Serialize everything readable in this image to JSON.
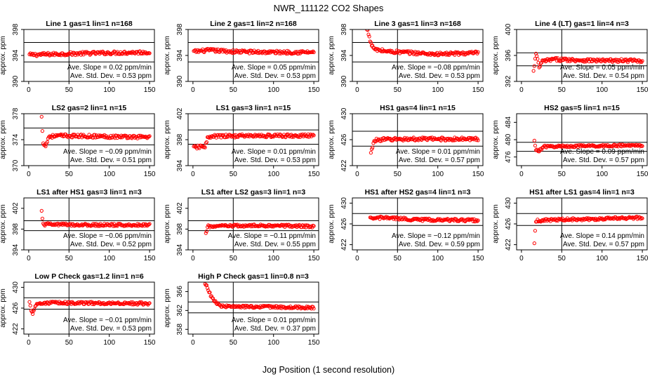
{
  "figure": {
    "title": "NWR_111122  CO2 Shapes",
    "xlabel": "Jog Position (1 second resolution)",
    "ylabel": "approx. ppm",
    "marker_color": "#ff0000"
  },
  "chart_data": [
    {
      "type": "scatter",
      "title": "Line 1 gas=1 lin=1 n=168",
      "ylabel": "approx. ppm",
      "xlim": [
        0,
        150
      ],
      "ylim": [
        390,
        398
      ],
      "xticks": [
        "0",
        "50",
        "100",
        "150"
      ],
      "yticks": [
        "390",
        "394",
        "398"
      ],
      "ytick_values": [
        390,
        394,
        398
      ],
      "hlines": [
        396,
        393
      ],
      "vline": 50,
      "slope_text": "Ave. Slope = 0.02  ppm/min",
      "sd_text": "Ave. Std. Dev. = 0.53  ppm",
      "series": [
        {
          "x_start": 1,
          "x_end": 150,
          "points": [
            [
              1,
              394.1
            ],
            [
              30,
              394.2
            ],
            [
              60,
              394.3
            ],
            [
              100,
              394.4
            ],
            [
              150,
              394.5
            ]
          ]
        }
      ]
    },
    {
      "type": "scatter",
      "title": "Line 2 gas=1 lin=2 n=168",
      "ylabel": "approx. ppm",
      "xlim": [
        0,
        150
      ],
      "ylim": [
        390,
        398
      ],
      "xticks": [
        "0",
        "50",
        "100",
        "150"
      ],
      "yticks": [
        "390",
        "394",
        "398"
      ],
      "ytick_values": [
        390,
        394,
        398
      ],
      "hlines": [
        396,
        393
      ],
      "vline": 50,
      "slope_text": "Ave. Slope = 0.05  ppm/min",
      "sd_text": "Ave. Std. Dev. = 0.53  ppm",
      "series": [
        {
          "x_start": 1,
          "x_end": 150,
          "points": [
            [
              1,
              394.6
            ],
            [
              20,
              394.8
            ],
            [
              50,
              394.6
            ],
            [
              100,
              394.5
            ],
            [
              150,
              394.5
            ]
          ]
        }
      ]
    },
    {
      "type": "scatter",
      "title": "Line 3 gas=1 lin=3 n=168",
      "ylabel": "approx. ppm",
      "xlim": [
        0,
        150
      ],
      "ylim": [
        390,
        398
      ],
      "xticks": [
        "0",
        "50",
        "100",
        "150"
      ],
      "yticks": [
        "390",
        "394",
        "398"
      ],
      "ytick_values": [
        390,
        394,
        398
      ],
      "hlines": [
        396,
        393
      ],
      "vline": 50,
      "slope_text": "Ave. Slope = −0.08  ppm/min",
      "sd_text": "Ave. Std. Dev. = 0.53  ppm",
      "series": [
        {
          "x_start": 1,
          "x_end": 150,
          "points": [
            [
              1,
              399.5
            ],
            [
              5,
              399.3
            ],
            [
              10,
              398.8
            ],
            [
              14,
              397.3
            ],
            [
              18,
              395.5
            ],
            [
              22,
              394.9
            ],
            [
              40,
              394.6
            ],
            [
              100,
              394.2
            ],
            [
              150,
              394.4
            ]
          ]
        }
      ]
    },
    {
      "type": "scatter",
      "title": "Line 4 (LT) gas=1 lin=4 n=3",
      "ylabel": "approx. ppm",
      "xlim": [
        0,
        150
      ],
      "ylim": [
        392,
        400
      ],
      "xticks": [
        "0",
        "50",
        "100",
        "150"
      ],
      "yticks": [
        "392",
        "396",
        "400"
      ],
      "ytick_values": [
        392,
        396,
        400
      ],
      "hlines": [
        396.4,
        394.4
      ],
      "vline": 50,
      "slope_text": "Ave. Slope = 0.05  ppm/min",
      "sd_text": "Ave. Std. Dev. = 0.54  ppm",
      "series": [
        {
          "x_start": 15,
          "x_end": 150,
          "points": [
            [
              15,
              393.5
            ],
            [
              18,
              396.3
            ],
            [
              22,
              394.2
            ],
            [
              26,
              395.1
            ],
            [
              40,
              395.4
            ],
            [
              100,
              395.2
            ],
            [
              150,
              395.2
            ]
          ]
        }
      ]
    },
    {
      "type": "scatter",
      "title": "LS2 gas=2 lin=1 n=15",
      "ylabel": "approx. ppm",
      "xlim": [
        0,
        150
      ],
      "ylim": [
        370,
        378
      ],
      "xticks": [
        "0",
        "50",
        "100",
        "150"
      ],
      "yticks": [
        "370",
        "374",
        "378"
      ],
      "ytick_values": [
        370,
        374,
        378
      ],
      "hlines": [
        375.8,
        373.2
      ],
      "vline": 50,
      "slope_text": "Ave. Slope = −0.09  ppm/min",
      "sd_text": "Ave. Std. Dev. = 0.51  ppm",
      "series": [
        {
          "x_start": 16,
          "x_end": 150,
          "points": [
            [
              16,
              377.4
            ],
            [
              18,
              373.6
            ],
            [
              21,
              373.0
            ],
            [
              25,
              374.5
            ],
            [
              40,
              374.6
            ],
            [
              100,
              374.5
            ],
            [
              150,
              374.4
            ]
          ]
        }
      ]
    },
    {
      "type": "scatter",
      "title": "LS1 gas=3 lin=1 n=15",
      "ylabel": "approx. ppm",
      "xlim": [
        0,
        150
      ],
      "ylim": [
        394,
        402
      ],
      "xticks": [
        "0",
        "50",
        "100",
        "150"
      ],
      "yticks": [
        "394",
        "398",
        "402"
      ],
      "ytick_values": [
        394,
        398,
        402
      ],
      "hlines": [
        399.5,
        397.3
      ],
      "vline": 50,
      "slope_text": "Ave. Slope = 0.01  ppm/min",
      "sd_text": "Ave. Std. Dev. = 0.53  ppm",
      "series": [
        {
          "x_start": 1,
          "x_end": 150,
          "points": [
            [
              1,
              396.8
            ],
            [
              10,
              396.9
            ],
            [
              15,
              397.0
            ],
            [
              18,
              398.2
            ],
            [
              25,
              398.5
            ],
            [
              60,
              398.6
            ],
            [
              150,
              398.6
            ]
          ]
        }
      ]
    },
    {
      "type": "scatter",
      "title": "HS1 gas=4 lin=1 n=15",
      "ylabel": "approx. ppm",
      "xlim": [
        0,
        150
      ],
      "ylim": [
        422,
        430
      ],
      "xticks": [
        "0",
        "50",
        "100",
        "150"
      ],
      "yticks": [
        "422",
        "426",
        "430"
      ],
      "ytick_values": [
        422,
        426,
        430
      ],
      "hlines": [
        427.3,
        425.0
      ],
      "vline": 50,
      "slope_text": "Ave. Slope = 0.01  ppm/min",
      "sd_text": "Ave. Std. Dev. = 0.57  ppm",
      "series": [
        {
          "x_start": 17,
          "x_end": 150,
          "points": [
            [
              17,
              423.8
            ],
            [
              20,
              425.6
            ],
            [
              25,
              426.0
            ],
            [
              60,
              426.1
            ],
            [
              150,
              426.1
            ]
          ]
        }
      ]
    },
    {
      "type": "scatter",
      "title": "HS2 gas=5 lin=1 n=15",
      "ylabel": "approx. ppm",
      "xlim": [
        0,
        150
      ],
      "ylim": [
        474,
        486
      ],
      "xticks": [
        "0",
        "50",
        "100",
        "150"
      ],
      "yticks": [
        "476",
        "480",
        "484"
      ],
      "ytick_values": [
        476,
        480,
        484
      ],
      "hlines": [
        479.4,
        477.3
      ],
      "vline": 50,
      "slope_text": "Ave. Slope = 0.09  ppm/min",
      "sd_text": "Ave. Std. Dev. = 0.57  ppm",
      "series": [
        {
          "x_start": 16,
          "x_end": 150,
          "points": [
            [
              16,
              479.6
            ],
            [
              18,
              477.6
            ],
            [
              22,
              477.5
            ],
            [
              28,
              478.4
            ],
            [
              60,
              478.5
            ],
            [
              150,
              478.7
            ]
          ]
        }
      ]
    },
    {
      "type": "scatter",
      "title": "LS1 after HS1 gas=3 lin=1 n=3",
      "ylabel": "approx. ppm",
      "xlim": [
        0,
        150
      ],
      "ylim": [
        394,
        404
      ],
      "xticks": [
        "0",
        "50",
        "100",
        "150"
      ],
      "yticks": [
        "394",
        "398",
        "402"
      ],
      "ytick_values": [
        394,
        398,
        402
      ],
      "hlines": [
        399.6,
        397.7
      ],
      "vline": 50,
      "slope_text": "Ave. Slope = −0.06  ppm/min",
      "sd_text": "Ave. Std. Dev. = 0.52  ppm",
      "series": [
        {
          "x_start": 16,
          "x_end": 150,
          "points": [
            [
              16,
              401.3
            ],
            [
              18,
              398.9
            ],
            [
              25,
              398.9
            ],
            [
              80,
              398.8
            ],
            [
              150,
              398.8
            ]
          ]
        }
      ]
    },
    {
      "type": "scatter",
      "title": "LS1 after LS2 gas=3 lin=1 n=3",
      "ylabel": "approx. ppm",
      "xlim": [
        0,
        150
      ],
      "ylim": [
        394,
        404
      ],
      "xticks": [
        "0",
        "50",
        "100",
        "150"
      ],
      "yticks": [
        "394",
        "398",
        "402"
      ],
      "ytick_values": [
        394,
        398,
        402
      ],
      "hlines": [
        399.6,
        397.7
      ],
      "vline": 50,
      "slope_text": "Ave. Slope = −0.11  ppm/min",
      "sd_text": "Ave. Std. Dev. = 0.55  ppm",
      "series": [
        {
          "x_start": 16,
          "x_end": 150,
          "points": [
            [
              16,
              397.0
            ],
            [
              18,
              398.5
            ],
            [
              40,
              398.6
            ],
            [
              100,
              398.7
            ],
            [
              150,
              398.5
            ]
          ]
        }
      ]
    },
    {
      "type": "scatter",
      "title": "HS1 after HS2 gas=4 lin=1 n=3",
      "ylabel": "approx. ppm",
      "xlim": [
        0,
        150
      ],
      "ylim": [
        421,
        431
      ],
      "xticks": [
        "0",
        "50",
        "100",
        "150"
      ],
      "yticks": [
        "422",
        "426",
        "430"
      ],
      "ytick_values": [
        422,
        426,
        430
      ],
      "hlines": [
        428.0,
        425.7
      ],
      "vline": 50,
      "slope_text": "Ave. Slope = −0.12  ppm/min",
      "sd_text": "Ave. Std. Dev. = 0.59  ppm",
      "series": [
        {
          "x_start": 16,
          "x_end": 150,
          "points": [
            [
              16,
              427.0
            ],
            [
              30,
              427.2
            ],
            [
              80,
              426.8
            ],
            [
              150,
              426.7
            ]
          ]
        }
      ]
    },
    {
      "type": "scatter",
      "title": "HS1 after LS1 gas=4 lin=1 n=3",
      "ylabel": "approx. ppm",
      "xlim": [
        0,
        150
      ],
      "ylim": [
        421,
        431
      ],
      "xticks": [
        "0",
        "50",
        "100",
        "150"
      ],
      "yticks": [
        "422",
        "426",
        "430"
      ],
      "ytick_values": [
        422,
        426,
        430
      ],
      "hlines": [
        428.0,
        425.7
      ],
      "vline": 50,
      "slope_text": "Ave. Slope = 0.14  ppm/min",
      "sd_text": "Ave. Std. Dev. = 0.57  ppm",
      "series": [
        {
          "x_start": 16,
          "x_end": 150,
          "points": [
            [
              16,
              422.5
            ],
            [
              18,
              426.6
            ],
            [
              40,
              426.8
            ],
            [
              100,
              427.0
            ],
            [
              150,
              427.2
            ]
          ]
        }
      ]
    },
    {
      "type": "scatter",
      "title": "Low P Check gas=1.2 lin=1 n=6",
      "ylabel": "approx. ppm",
      "xlim": [
        0,
        150
      ],
      "ylim": [
        421,
        431
      ],
      "xticks": [
        "0",
        "50",
        "100",
        "150"
      ],
      "yticks": [
        "422",
        "426",
        "430"
      ],
      "ytick_values": [
        422,
        426,
        430
      ],
      "hlines": [
        428.0,
        425.8
      ],
      "vline": 50,
      "slope_text": "Ave. Slope = −0.01  ppm/min",
      "sd_text": "Ave. Std. Dev. = 0.53  ppm",
      "series": [
        {
          "x_start": 1,
          "x_end": 150,
          "points": [
            [
              1,
              427.4
            ],
            [
              3,
              425.5
            ],
            [
              5,
              424.8
            ],
            [
              8,
              426.5
            ],
            [
              15,
              427.0
            ],
            [
              60,
              427.0
            ],
            [
              150,
              426.9
            ]
          ]
        }
      ]
    },
    {
      "type": "scatter",
      "title": "High P Check gas=1 lin=0.8 n=3",
      "ylabel": "approx. ppm",
      "xlim": [
        0,
        150
      ],
      "ylim": [
        357,
        368
      ],
      "xticks": [
        "0",
        "50",
        "100",
        "150"
      ],
      "yticks": [
        "358",
        "362",
        "366"
      ],
      "ytick_values": [
        358,
        362,
        366
      ],
      "hlines": [
        363.8,
        361.5
      ],
      "vline": 50,
      "slope_text": "Ave. Slope = 0.01  ppm/min",
      "sd_text": "Ave. Std. Dev. = 0.37  ppm",
      "series": [
        {
          "x_start": 15,
          "x_end": 150,
          "points": [
            [
              15,
              367.8
            ],
            [
              18,
              366.8
            ],
            [
              22,
              365.2
            ],
            [
              26,
              364.2
            ],
            [
              30,
              363.4
            ],
            [
              35,
              363.0
            ],
            [
              45,
              362.8
            ],
            [
              80,
              362.8
            ],
            [
              150,
              362.6
            ]
          ]
        }
      ]
    }
  ]
}
